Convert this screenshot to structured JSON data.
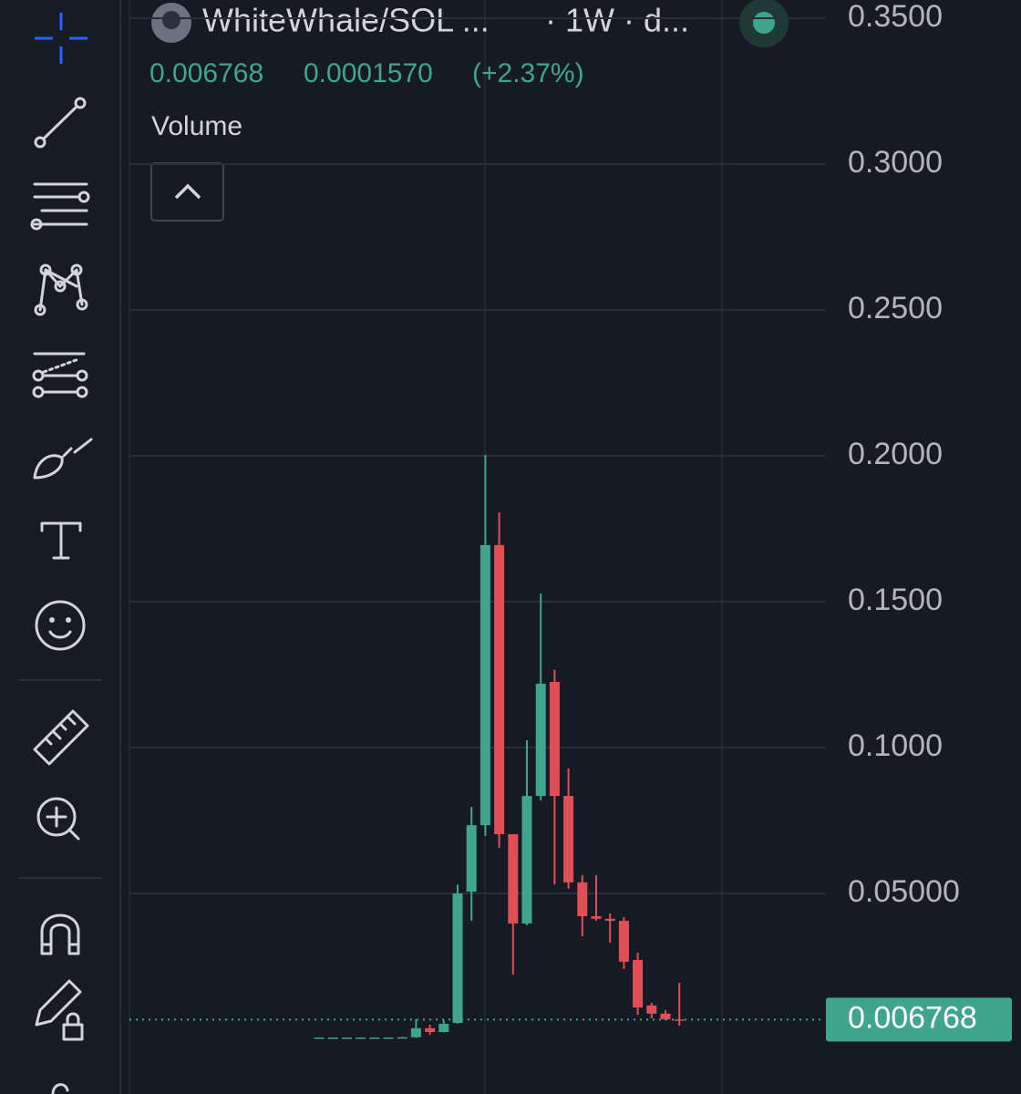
{
  "header": {
    "symbol": "WhiteWhale/SOL ...",
    "interval": "· 1W · d...",
    "price": "0.006768",
    "change": "0.0001570",
    "change_pct": "(+2.37%)",
    "volume_label": "Volume"
  },
  "chart_data": {
    "type": "candlestick",
    "categories": [
      null,
      null,
      null,
      null,
      null,
      null,
      null,
      null,
      null,
      null,
      null,
      null,
      null,
      null,
      null,
      null,
      null,
      null,
      null,
      null,
      null,
      null,
      null,
      null,
      null,
      null,
      null
    ],
    "open": [
      0.0006,
      0.0006,
      0.0006,
      0.0006,
      0.0006,
      0.0006,
      0.0006,
      0.0007,
      0.0038,
      0.0025,
      0.0056,
      0.0506,
      0.0734,
      0.1694,
      0.0703,
      0.0397,
      0.0834,
      0.1225,
      0.0834,
      0.0538,
      0.0422,
      0.0413,
      0.0406,
      0.0272,
      0.0116,
      0.0088,
      0.0068
    ],
    "high": [
      0.0006,
      0.0006,
      0.0006,
      0.0006,
      0.0006,
      0.0006,
      0.0008,
      0.0069,
      0.005,
      0.0065,
      0.053,
      0.0797,
      0.2003,
      0.1806,
      0.0703,
      0.1025,
      0.1528,
      0.1266,
      0.0928,
      0.0563,
      0.0563,
      0.0431,
      0.0419,
      0.0297,
      0.0125,
      0.01,
      0.0194
    ],
    "low": [
      0.0006,
      0.0006,
      0.0006,
      0.0006,
      0.0006,
      0.0006,
      0.0005,
      0.0005,
      0.0015,
      0.0024,
      0.0054,
      0.0406,
      0.0697,
      0.0656,
      0.0222,
      0.0391,
      0.0819,
      0.0531,
      0.0516,
      0.0353,
      0.0406,
      0.0331,
      0.0241,
      0.0084,
      0.0072,
      0.0066,
      0.0047
    ],
    "close": [
      0.0006,
      0.0006,
      0.0006,
      0.0006,
      0.0006,
      0.0006,
      0.0007,
      0.0038,
      0.0025,
      0.0053,
      0.05,
      0.0734,
      0.1694,
      0.0703,
      0.0397,
      0.0834,
      0.1219,
      0.0834,
      0.0538,
      0.0422,
      0.0413,
      0.0406,
      0.0266,
      0.0109,
      0.0088,
      0.0069,
      0.006768
    ],
    "up_color": "#3fa58c",
    "down_color": "#e04f55",
    "ylim": [
      -0.01875,
      0.35625
    ],
    "yticks": [
      {
        "value": 0.35,
        "label": "0.3500"
      },
      {
        "value": 0.3,
        "label": "0.3000"
      },
      {
        "value": 0.25,
        "label": "0.2500"
      },
      {
        "value": 0.2,
        "label": "0.2000"
      },
      {
        "value": 0.15,
        "label": "0.1500"
      },
      {
        "value": 0.1,
        "label": "0.1000"
      },
      {
        "value": 0.05,
        "label": "0.05000"
      }
    ],
    "grid": true,
    "last_price": 0.006768
  }
}
